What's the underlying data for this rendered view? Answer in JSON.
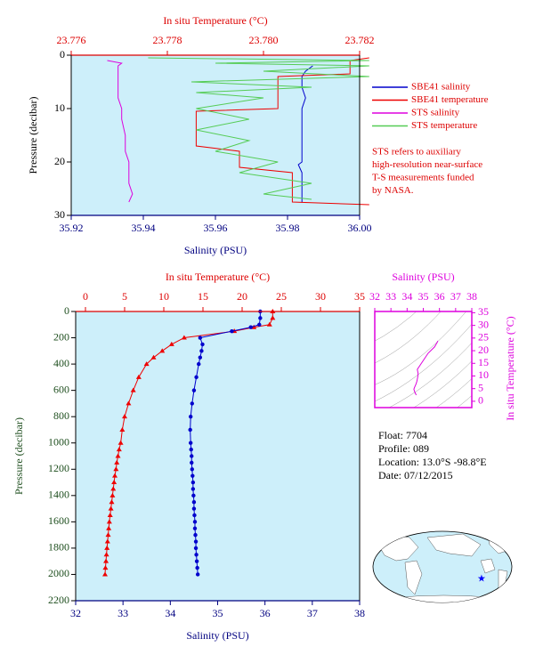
{
  "chart_data": [
    {
      "type": "line",
      "xlabel": "Salinity (PSU)",
      "x2label": "In situ Temperature (°C)",
      "ylabel": "Pressure (decibar)",
      "xlim": [
        35.92,
        36.0
      ],
      "xticks": [
        35.92,
        35.94,
        35.96,
        35.98,
        {
          "value": 36.0,
          "label": "36.00"
        }
      ],
      "x2lim": [
        23.776,
        23.782
      ],
      "x2ticks": [
        23.776,
        23.778,
        {
          "value": 23.78,
          "label": "23.780"
        },
        23.782
      ],
      "ylim": [
        0,
        30
      ],
      "yticks": [
        0,
        10,
        20,
        30
      ],
      "invert_y": true,
      "x_color": "#000080",
      "x2_color": "#dd0000",
      "y_color": "#000000",
      "series": [
        {
          "name": "SBE41 salinity",
          "color": "#0000cc",
          "axis": "x",
          "pressure": [
            2,
            3,
            4,
            6,
            8,
            10,
            12,
            14,
            16,
            18,
            20,
            20.5,
            22,
            24,
            26,
            27.5
          ],
          "values": [
            35.987,
            35.985,
            35.984,
            35.984,
            35.985,
            35.984,
            35.984,
            35.984,
            35.984,
            35.984,
            35.984,
            35.983,
            35.984,
            35.984,
            35.984,
            35.984
          ]
        },
        {
          "name": "SBE41 temperature",
          "color": "#ee0000",
          "axis": "x2",
          "pressure": [
            0.5,
            1,
            3.5,
            4,
            10,
            10.5,
            17,
            18,
            21,
            22,
            27.5,
            28
          ],
          "values": [
            23.7822,
            23.7818,
            23.7818,
            23.7803,
            23.7803,
            23.7786,
            23.7786,
            23.7795,
            23.7795,
            23.7806,
            23.7806,
            23.7822
          ]
        },
        {
          "name": "STS salinity",
          "color": "#dd00dd",
          "axis": "x",
          "pressure": [
            1,
            1.5,
            2,
            4,
            6,
            8,
            10,
            12,
            15,
            18,
            20,
            22,
            24,
            26,
            27.5
          ],
          "values": [
            35.93,
            35.934,
            35.933,
            35.933,
            35.933,
            35.933,
            35.934,
            35.934,
            35.935,
            35.935,
            35.936,
            35.936,
            35.936,
            35.937,
            35.936
          ]
        },
        {
          "name": "STS temperature",
          "color": "#55cc55",
          "axis": "x2",
          "pressure": [
            0.5,
            1,
            1.5,
            2,
            3,
            4,
            5,
            6,
            7,
            8,
            10,
            12,
            14,
            16,
            18,
            20,
            22,
            24,
            26,
            27
          ],
          "values": [
            23.7776,
            23.7822,
            23.779,
            23.7822,
            23.78,
            23.7822,
            23.7785,
            23.781,
            23.7786,
            23.78,
            23.7786,
            23.7797,
            23.7786,
            23.7797,
            23.779,
            23.7803,
            23.7795,
            23.781,
            23.78,
            23.781
          ]
        }
      ],
      "note": [
        "STS refers to auxiliary",
        "high-resolution near-surface",
        "T-S measurements funded",
        "by NASA."
      ]
    },
    {
      "type": "line",
      "xlabel": "Salinity (PSU)",
      "x2label": "In situ Temperature (°C)",
      "ylabel": "Pressure (decibar)",
      "xlim": [
        32,
        38
      ],
      "xticks": [
        32,
        33,
        34,
        35,
        36,
        37,
        38
      ],
      "x2lim": [
        -1.25,
        35
      ],
      "x2ticks": [
        0,
        5,
        10,
        15,
        20,
        25,
        30,
        35
      ],
      "ylim": [
        0,
        2200
      ],
      "yticks": [
        0,
        200,
        400,
        600,
        800,
        1000,
        1200,
        1400,
        1600,
        1800,
        2000,
        2200
      ],
      "invert_y": true,
      "x_color": "#000080",
      "x2_color": "#dd0000",
      "y_color": "#1f4f1f",
      "series": [
        {
          "color": "#ee0000",
          "axis": "x2",
          "marker": "triangle",
          "pressure": [
            0,
            50,
            100,
            120,
            150,
            200,
            250,
            300,
            350,
            400,
            500,
            600,
            700,
            800,
            900,
            1000,
            1050,
            1100,
            1150,
            1200,
            1250,
            1300,
            1350,
            1400,
            1450,
            1500,
            1550,
            1600,
            1650,
            1700,
            1750,
            1800,
            1850,
            1900,
            1950,
            2000
          ],
          "values": [
            23.9,
            23.9,
            23.5,
            21.5,
            19,
            12.6,
            11,
            9.8,
            8.7,
            7.8,
            6.8,
            6.1,
            5.5,
            5.0,
            4.7,
            4.5,
            4.3,
            4.15,
            4.0,
            3.9,
            3.75,
            3.65,
            3.55,
            3.45,
            3.35,
            3.25,
            3.15,
            3.05,
            2.97,
            2.9,
            2.82,
            2.75,
            2.68,
            2.62,
            2.55,
            2.5
          ]
        },
        {
          "color": "#0000cc",
          "axis": "x",
          "marker": "circle",
          "pressure": [
            0,
            50,
            100,
            120,
            150,
            200,
            250,
            300,
            350,
            400,
            500,
            600,
            700,
            800,
            900,
            1000,
            1050,
            1100,
            1150,
            1200,
            1250,
            1300,
            1350,
            1400,
            1450,
            1500,
            1550,
            1600,
            1650,
            1700,
            1750,
            1800,
            1850,
            1900,
            1950,
            2000
          ],
          "values": [
            35.9,
            35.9,
            35.88,
            35.7,
            35.3,
            34.63,
            34.68,
            34.66,
            34.63,
            34.6,
            34.55,
            34.5,
            34.46,
            34.43,
            34.42,
            34.43,
            34.44,
            34.45,
            34.45,
            34.46,
            34.47,
            34.48,
            34.48,
            34.49,
            34.5,
            34.5,
            34.51,
            34.52,
            34.52,
            34.53,
            34.54,
            34.54,
            34.55,
            34.56,
            34.57,
            34.58
          ]
        }
      ]
    },
    {
      "type": "ts",
      "xlabel": "Salinity (PSU)",
      "ylabel": "In situ Temperature (°C)",
      "xlim": [
        32,
        38
      ],
      "xticks": [
        32,
        33,
        34,
        35,
        36,
        37,
        38
      ],
      "ylim": [
        -2.5,
        35.5
      ],
      "yticks": [
        0,
        5,
        10,
        15,
        20,
        25,
        30,
        35
      ],
      "color": "#dd00dd"
    }
  ],
  "info": [
    "Float:  7704",
    "Profile:  089",
    "Location:  13.0°S  -98.8°E",
    "Date:  07/12/2015"
  ]
}
